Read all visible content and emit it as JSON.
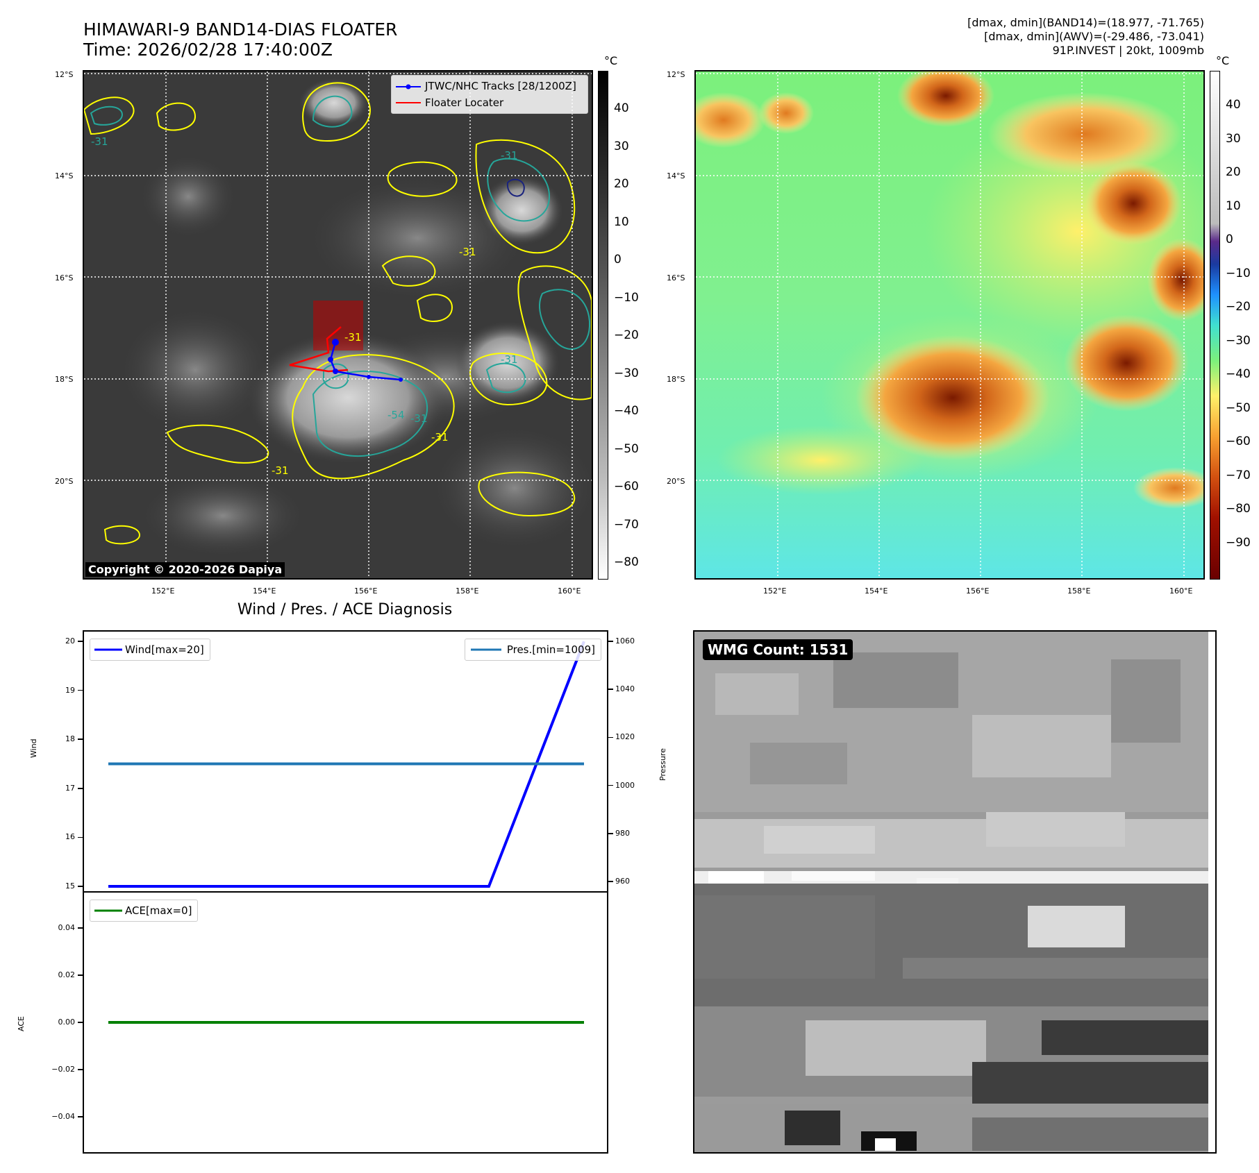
{
  "header": {
    "title_line1": "HIMAWARI-9 BAND14-DIAS FLOATER",
    "title_line2": "Time: 2026/02/28 17:40:00Z",
    "info_line1": "[dmax, dmin](BAND14)=(18.977, -71.765)",
    "info_line2": "[dmax, dmin](AWV)=(-29.486, -73.041)",
    "info_line3": "91P.INVEST | 20kt, 1009mb"
  },
  "map": {
    "lat_labels": [
      "12°S",
      "14°S",
      "16°S",
      "18°S",
      "20°S"
    ],
    "lon_labels": [
      "152°E",
      "154°E",
      "156°E",
      "158°E",
      "160°E"
    ],
    "copyright": "Copyright © 2020-2026 Dapiya",
    "legend": {
      "tracks": "JTWC/NHC Tracks [28/1200Z]",
      "floater": "Floater Locater"
    },
    "contour_labels": [
      "-31",
      "-31",
      "-31",
      "-31",
      "-31",
      "-31",
      "-54",
      "-31",
      "-31"
    ],
    "colors": {
      "tracks": "#0000ff",
      "floater": "#ff0000",
      "contour_yellow": "#ffff00",
      "contour_teal": "#26a69a"
    }
  },
  "colorbar_left": {
    "unit": "°C",
    "ticks": [
      "40",
      "30",
      "20",
      "10",
      "0",
      "−10",
      "−20",
      "−30",
      "−40",
      "−50",
      "−60",
      "−70",
      "−80"
    ]
  },
  "colorbar_right": {
    "unit": "°C",
    "ticks": [
      "40",
      "30",
      "20",
      "10",
      "0",
      "−10",
      "−20",
      "−30",
      "−40",
      "−50",
      "−60",
      "−70",
      "−80",
      "−90"
    ]
  },
  "diagnosis": {
    "title": "Wind / Pres. / ACE Diagnosis",
    "wind_axis_label": "Wind",
    "pressure_axis_label": "Pressure",
    "ace_axis_label": "ACE",
    "legend_wind": "Wind[max=20]",
    "legend_pres": "Pres.[min=1009]",
    "legend_ace": "ACE[max=0]",
    "wind_ticks": [
      "20",
      "19",
      "18",
      "17",
      "16",
      "15"
    ],
    "pres_ticks": [
      "1060",
      "1040",
      "1020",
      "1000",
      "980",
      "960"
    ],
    "ace_ticks": [
      "0.04",
      "0.02",
      "0.00",
      "−0.02",
      "−0.04"
    ]
  },
  "wmg": {
    "label": "WMG Count: 1531"
  },
  "chart_data": [
    {
      "type": "line",
      "title": "Wind / Pres. / ACE Diagnosis",
      "ylabel": "Wind",
      "series": [
        {
          "name": "Wind[max=20]",
          "color": "#0000ff",
          "x": [
            0,
            1,
            2,
            3,
            4,
            5
          ],
          "values": [
            15,
            15,
            15,
            15,
            15,
            20
          ]
        }
      ],
      "ylim": [
        14.9,
        20.2
      ]
    },
    {
      "type": "line",
      "ylabel": "Pressure",
      "series": [
        {
          "name": "Pres.[min=1009]",
          "color": "#1f77b4",
          "x": [
            0,
            5
          ],
          "values": [
            1009,
            1009
          ]
        }
      ],
      "ylim": [
        956,
        1064
      ]
    },
    {
      "type": "line",
      "ylabel": "ACE",
      "series": [
        {
          "name": "ACE[max=0]",
          "color": "#008000",
          "x": [
            0,
            5
          ],
          "values": [
            0,
            0
          ]
        }
      ],
      "ylim": [
        -0.055,
        0.055
      ]
    }
  ]
}
